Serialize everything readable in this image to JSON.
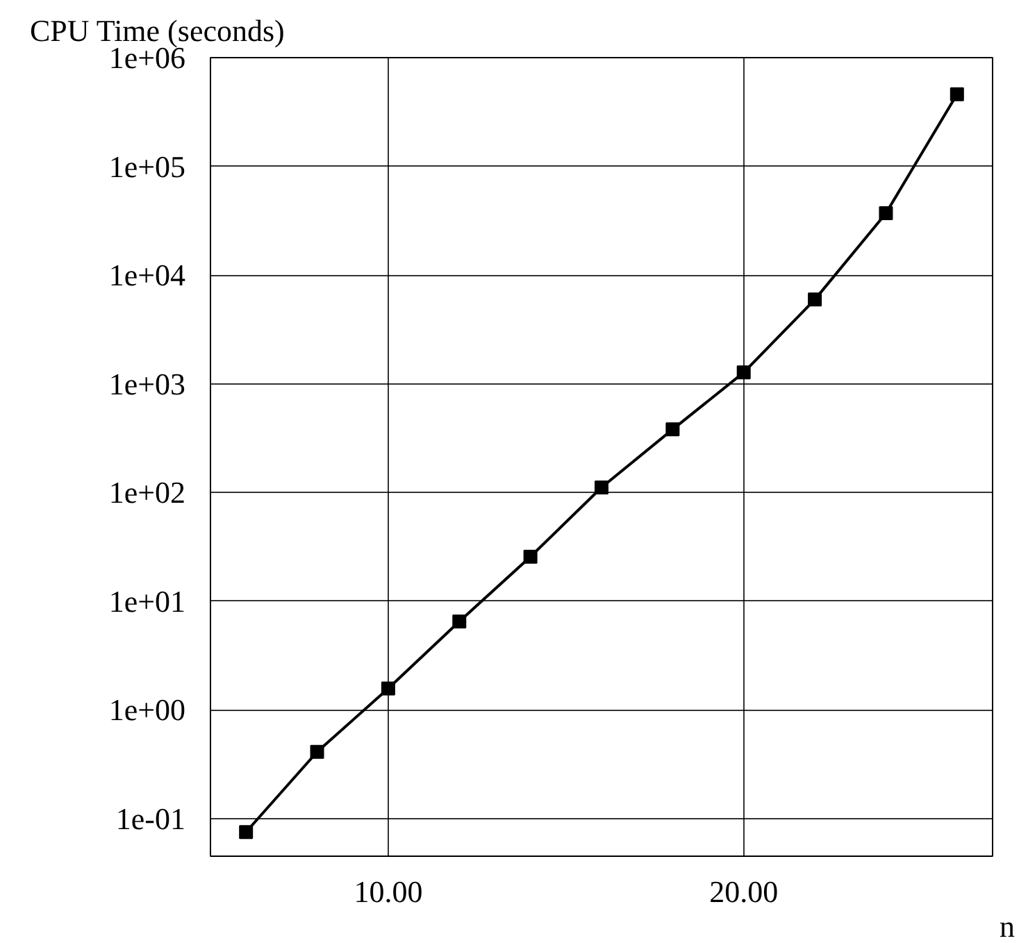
{
  "chart_data": {
    "type": "line",
    "ylabel": "CPU Time (seconds)",
    "xlabel": "n",
    "x": [
      6,
      8,
      10,
      12,
      14,
      16,
      18,
      20,
      22,
      24,
      26
    ],
    "series": [
      {
        "color": "#000000",
        "values": [
          0.075,
          0.41,
          1.57,
          6.5,
          25.6,
          111,
          380,
          1270,
          5950,
          37000,
          460000
        ]
      }
    ],
    "log": "y",
    "xlim": [
      5,
      27
    ],
    "ylim": [
      0.045,
      1000000
    ],
    "xticks": [
      {
        "value": 10,
        "label": "10.00"
      },
      {
        "value": 20,
        "label": "20.00"
      }
    ],
    "yticks": [
      {
        "value": 0.1,
        "label": "1e-01"
      },
      {
        "value": 1,
        "label": "1e+00"
      },
      {
        "value": 10,
        "label": "1e+01"
      },
      {
        "value": 100,
        "label": "1e+02"
      },
      {
        "value": 1000,
        "label": "1e+03"
      },
      {
        "value": 10000,
        "label": "1e+04"
      },
      {
        "value": 100000,
        "label": "1e+05"
      },
      {
        "value": 1000000,
        "label": "1e+06"
      }
    ],
    "grid": true,
    "marker": "square",
    "line_style": "solid"
  }
}
